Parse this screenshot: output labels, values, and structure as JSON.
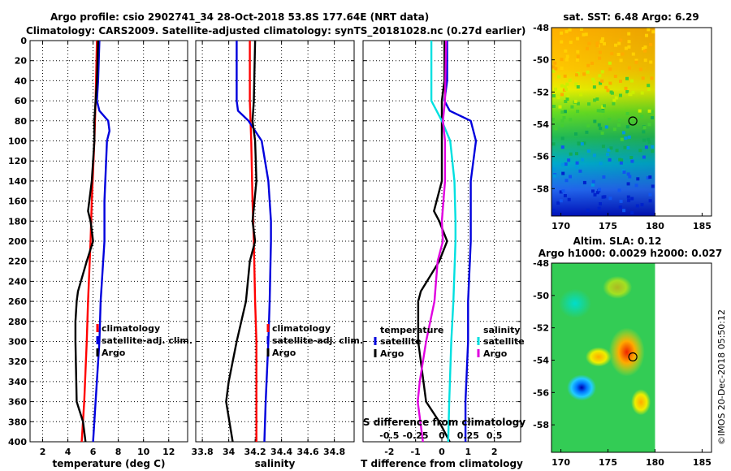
{
  "header": {
    "line1": "Argo profile: csio 2902741_34 28-Oct-2018 53.8S 177.64E (NRT data)",
    "line2": "Climatology: CARS2009. Satellite-adjusted climatology: synTS_20181028.nc (0.27d earlier)"
  },
  "watermark": "©IMOS 20-Dec-2018 05:50:12",
  "colors": {
    "argo": "#000000",
    "climatology": "#ff0000",
    "satellite": "#0000dd",
    "sal_sat": "#00e0e0",
    "sal_argo": "#e000e0"
  },
  "chart_data": [
    {
      "type": "line",
      "id": "temperature",
      "xlabel": "temperature (deg C)",
      "xlim": [
        1,
        13.5
      ],
      "xticks": [
        2,
        4,
        6,
        8,
        10,
        12
      ],
      "xtick_labels": [
        "2",
        "4",
        "6",
        "8",
        "10",
        "12"
      ],
      "ylim": [
        0,
        400
      ],
      "yticks": [
        0,
        20,
        40,
        60,
        80,
        100,
        120,
        140,
        160,
        180,
        200,
        220,
        240,
        260,
        280,
        300,
        320,
        340,
        360,
        380,
        400
      ],
      "grid": true,
      "legend": [
        "climatology",
        "satellite-adj. clim.",
        "Argo"
      ],
      "series": [
        {
          "name": "climatology",
          "color": "#ff0000",
          "depth": [
            0,
            60,
            100,
            160,
            200,
            260,
            300,
            360,
            400
          ],
          "values": [
            6.3,
            6.2,
            6.1,
            5.9,
            5.8,
            5.6,
            5.5,
            5.3,
            5.1
          ]
        },
        {
          "name": "satellite-adj. clim.",
          "color": "#0000dd",
          "depth": [
            0,
            40,
            60,
            70,
            80,
            90,
            100,
            160,
            200,
            260,
            300,
            360,
            400
          ],
          "values": [
            6.5,
            6.4,
            6.3,
            6.5,
            7.2,
            7.3,
            7.1,
            6.9,
            6.9,
            6.6,
            6.5,
            6.2,
            6.0
          ]
        },
        {
          "name": "Argo",
          "color": "#000000",
          "depth": [
            0,
            40,
            60,
            80,
            100,
            140,
            170,
            180,
            200,
            220,
            250,
            260,
            280,
            300,
            360,
            380,
            400
          ],
          "values": [
            6.4,
            6.3,
            6.2,
            6.1,
            6.1,
            5.9,
            5.6,
            5.8,
            6.0,
            5.5,
            4.8,
            4.7,
            4.6,
            4.6,
            4.7,
            5.2,
            5.4
          ]
        }
      ]
    },
    {
      "type": "line",
      "id": "salinity",
      "xlabel": "salinity",
      "xlim": [
        33.75,
        34.95
      ],
      "xticks": [
        33.8,
        34,
        34.2,
        34.4,
        34.6,
        34.8
      ],
      "xtick_labels": [
        "33.8",
        "34",
        "34.2",
        "34.4",
        "34.6",
        "34.8"
      ],
      "ylim": [
        0,
        400
      ],
      "grid": true,
      "legend": [
        "climatology",
        "satellite-adj. clim.",
        "Argo"
      ],
      "series": [
        {
          "name": "climatology",
          "color": "#ff0000",
          "depth": [
            0,
            60,
            100,
            160,
            200,
            260,
            300,
            360,
            400
          ],
          "values": [
            34.16,
            34.16,
            34.17,
            34.18,
            34.19,
            34.2,
            34.21,
            34.21,
            34.21
          ]
        },
        {
          "name": "satellite-adj. clim.",
          "color": "#0000dd",
          "depth": [
            0,
            40,
            60,
            70,
            80,
            100,
            140,
            180,
            200,
            260,
            300,
            360,
            400
          ],
          "values": [
            34.06,
            34.06,
            34.06,
            34.07,
            34.15,
            34.25,
            34.3,
            34.32,
            34.32,
            34.31,
            34.3,
            34.28,
            34.27
          ]
        },
        {
          "name": "Argo",
          "color": "#000000",
          "depth": [
            0,
            60,
            80,
            100,
            140,
            180,
            200,
            220,
            260,
            300,
            340,
            360,
            400
          ],
          "values": [
            34.2,
            34.19,
            34.18,
            34.2,
            34.21,
            34.18,
            34.2,
            34.16,
            34.13,
            34.06,
            34.0,
            33.98,
            34.03
          ]
        }
      ]
    },
    {
      "type": "line",
      "id": "difference",
      "xlabel": "T difference from climatology",
      "xlim": [
        -3,
        3
      ],
      "xticks": [
        -2,
        -1,
        0,
        1,
        2
      ],
      "xtick_labels": [
        "-2",
        "-1",
        "0",
        "1",
        "2"
      ],
      "top_axis_label": "S difference from climatology",
      "top_ticks": [
        -0.5,
        -0.25,
        0,
        0.25,
        0.5
      ],
      "top_tick_labels": [
        "-0.5",
        "-0.25",
        "0",
        "0.25",
        "0.5"
      ],
      "ylim": [
        0,
        400
      ],
      "grid": true,
      "legend": {
        "temperature": {
          "title": "temperature",
          "entries": [
            "satellite",
            "Argo"
          ]
        },
        "salinity": {
          "title": "salinity",
          "entries": [
            "satellite",
            "Argo"
          ]
        }
      },
      "series": [
        {
          "name": "T satellite",
          "color": "#0000dd",
          "depth": [
            0,
            40,
            60,
            70,
            80,
            100,
            140,
            180,
            200,
            260,
            300,
            360,
            400
          ],
          "values": [
            0.2,
            0.2,
            0.1,
            0.3,
            1.1,
            1.3,
            1.1,
            1.1,
            1.1,
            1.0,
            1.0,
            0.9,
            0.9
          ]
        },
        {
          "name": "T Argo",
          "color": "#000000",
          "depth": [
            0,
            40,
            60,
            80,
            100,
            140,
            170,
            180,
            200,
            220,
            250,
            260,
            280,
            300,
            360,
            380,
            400
          ],
          "values": [
            0.1,
            0.1,
            0.0,
            0.0,
            0.0,
            0.0,
            -0.3,
            -0.1,
            0.2,
            -0.1,
            -0.8,
            -0.9,
            -0.9,
            -0.9,
            -0.6,
            -0.1,
            0.3
          ]
        },
        {
          "name": "S satellite",
          "color": "#00e0e0",
          "depth": [
            0,
            40,
            60,
            80,
            100,
            140,
            180,
            200,
            260,
            300,
            360,
            400
          ],
          "values": [
            -0.1,
            -0.1,
            -0.1,
            0.0,
            0.08,
            0.12,
            0.13,
            0.13,
            0.11,
            0.09,
            0.07,
            0.06
          ]
        },
        {
          "name": "S Argo",
          "color": "#e000e0",
          "depth": [
            0,
            60,
            80,
            100,
            140,
            180,
            200,
            220,
            260,
            300,
            340,
            360,
            400
          ],
          "values": [
            0.04,
            0.03,
            0.01,
            0.03,
            0.03,
            0.0,
            0.01,
            -0.04,
            -0.07,
            -0.15,
            -0.21,
            -0.23,
            -0.18
          ]
        }
      ]
    },
    {
      "type": "heatmap",
      "id": "sst_map",
      "title": "sat. SST: 6.48 Argo: 6.29",
      "xlim": [
        169,
        186
      ],
      "ylim": [
        -59.7,
        -48
      ],
      "xticks": [
        170,
        175,
        180,
        185
      ],
      "xtick_labels": [
        "170",
        "175",
        "180",
        "185"
      ],
      "yticks": [
        -48,
        -50,
        -52,
        -54,
        -56,
        -58
      ],
      "ytick_labels": [
        "-48",
        "-50",
        "-52",
        "-54",
        "-56",
        "-58"
      ],
      "data_extent_lon": [
        169,
        180
      ],
      "float_position": {
        "lon": 177.64,
        "lat": -53.8
      }
    },
    {
      "type": "heatmap",
      "id": "sla_map",
      "title": "Altim. SLA: 0.12",
      "subtitle": "Argo h1000: 0.0029 h2000: 0.027",
      "xlim": [
        169,
        186
      ],
      "ylim": [
        -59.7,
        -48
      ],
      "xticks": [
        170,
        175,
        180,
        185
      ],
      "xtick_labels": [
        "170",
        "175",
        "180",
        "185"
      ],
      "yticks": [
        -48,
        -50,
        -52,
        -54,
        -56,
        -58
      ],
      "ytick_labels": [
        "-48",
        "-50",
        "-52",
        "-54",
        "-56",
        "-58"
      ],
      "data_extent_lon": [
        169,
        180
      ],
      "float_position": {
        "lon": 177.64,
        "lat": -53.8
      }
    }
  ]
}
